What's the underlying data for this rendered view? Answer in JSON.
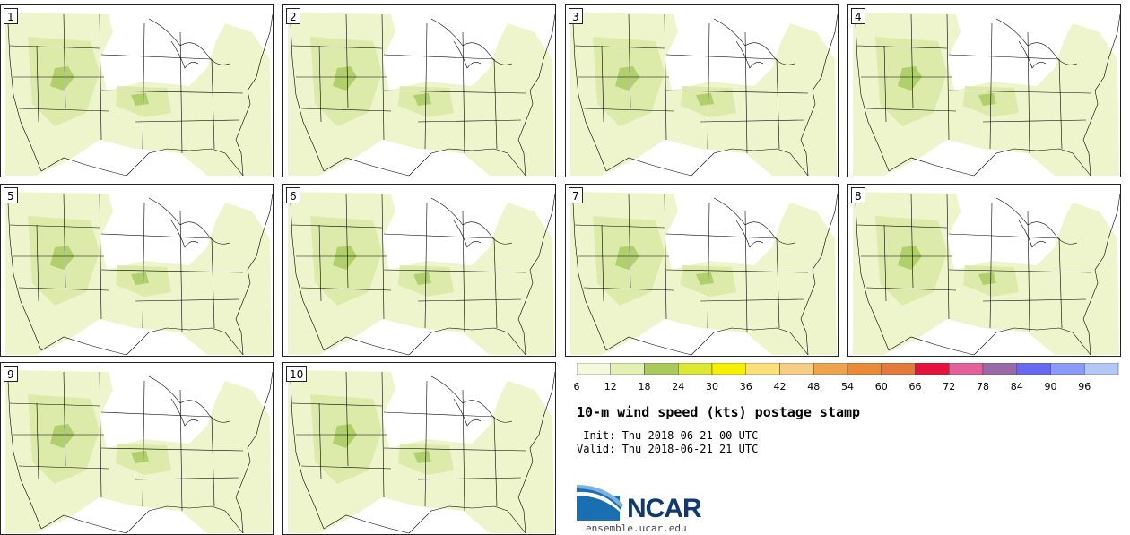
{
  "panels": [
    {
      "label": "1"
    },
    {
      "label": "2"
    },
    {
      "label": "3"
    },
    {
      "label": "4"
    },
    {
      "label": "5"
    },
    {
      "label": "6"
    },
    {
      "label": "7"
    },
    {
      "label": "8"
    },
    {
      "label": "9"
    },
    {
      "label": "10"
    }
  ],
  "colorbar": {
    "ticks": [
      "6",
      "12",
      "18",
      "24",
      "30",
      "36",
      "42",
      "48",
      "54",
      "60",
      "66",
      "72",
      "78",
      "84",
      "90",
      "96"
    ],
    "colors": [
      "#f4f8dc",
      "#e2f0b2",
      "#a9c95a",
      "#dde832",
      "#f7ee00",
      "#fbe07a",
      "#f6cd84",
      "#eda44c",
      "#e98a38",
      "#e37a3a",
      "#e8103c",
      "#e3609a",
      "#9a6aa8",
      "#6868f0",
      "#8a9af6",
      "#b4c8f8"
    ]
  },
  "title": "10-m wind speed (kts) postage stamp",
  "init_line": " Init: Thu 2018-06-21 00 UTC",
  "valid_line": "Valid: Thu 2018-06-21 21 UTC",
  "logo": {
    "text": "NCAR"
  },
  "url": "ensemble.ucar.edu",
  "map_colors": {
    "light": "#eef5cc",
    "mid": "#dcebaa",
    "dark": "#a6c95e",
    "border": "#000000"
  }
}
